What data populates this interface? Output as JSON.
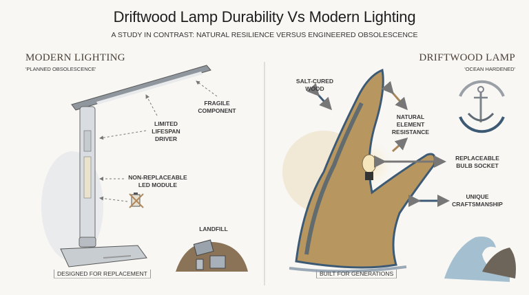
{
  "header": {
    "title": "Driftwood Lamp Durability Vs Modern Lighting",
    "subtitle": "A STUDY IN CONTRAST: NATURAL RESILIENCE VERSUS ENGINEERED OBSOLESCENCE"
  },
  "left": {
    "heading": "MODERN LIGHTING",
    "tagline": "'PLANNED OBSOLESCENCE'",
    "labels": {
      "fragile": "FRAGILE\nCOMPONENT",
      "driver": "LIMITED\nLIFESPAN\nDRIVER",
      "led": "NON-REPLACEABLE\nLED MODULE",
      "landfill": "LANDFILL"
    },
    "caption": "DESIGNED FOR REPLACEMENT",
    "icons": [
      "desk-lamp",
      "crossed-battery-icon",
      "landfill-pile"
    ]
  },
  "right": {
    "heading": "DRIFTWOOD LAMP",
    "tagline": "'OCEAN HARDENED'",
    "labels": {
      "salt": "SALT-CURED\nWOOD",
      "natural": "NATURAL\nELEMENT\nRESISTANCE",
      "socket": "REPLACEABLE\nBULB SOCKET",
      "craft": "UNIQUE\nCRAFTSMANSHIP"
    },
    "caption": "BUILT FOR GENERATIONS",
    "icons": [
      "driftwood-lamp",
      "anchor-cycle-icon",
      "ocean-wave"
    ]
  },
  "colors": {
    "navy": "#3d5a75",
    "wood": "#b8965f",
    "gray": "#8a9097"
  }
}
